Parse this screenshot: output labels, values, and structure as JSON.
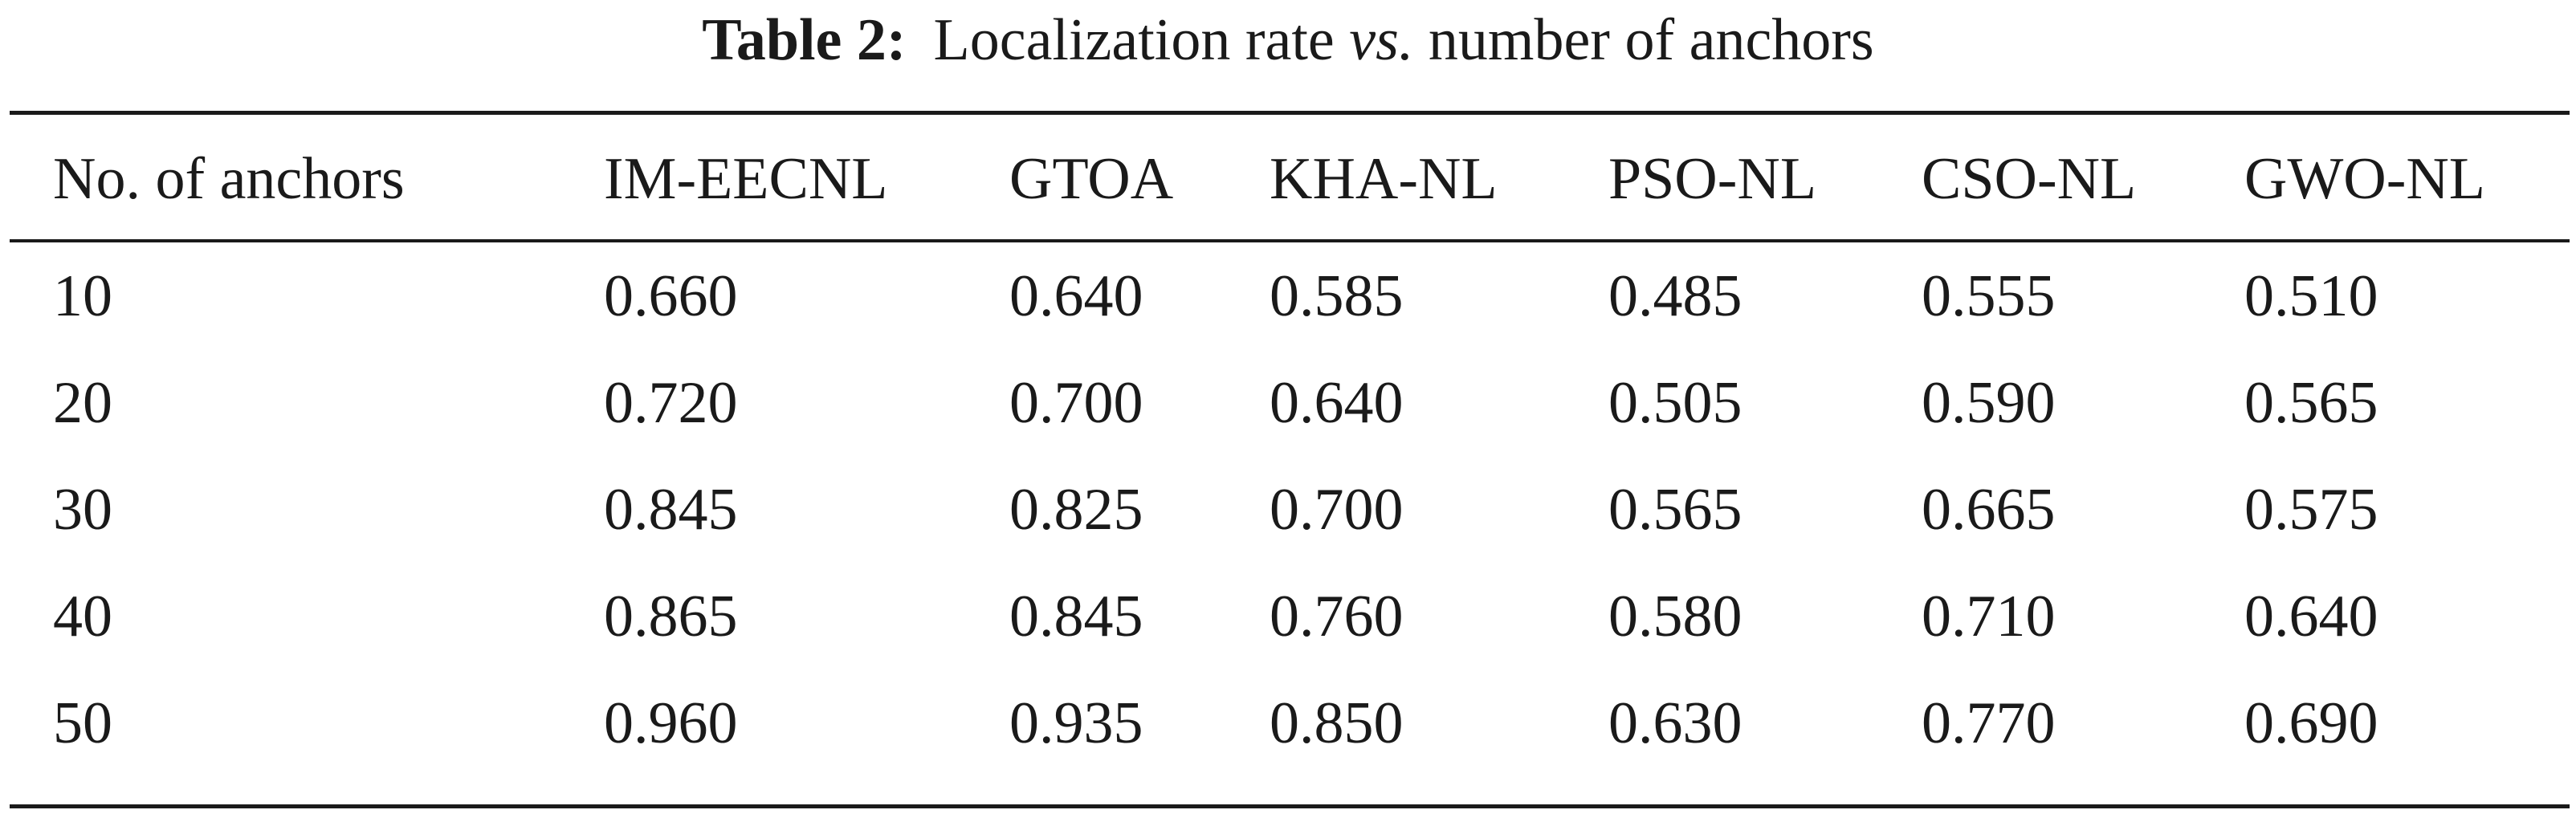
{
  "caption": {
    "label": "Table 2:",
    "text_before": "Localization rate",
    "text_italic": "vs.",
    "text_after": "number of anchors"
  },
  "table": {
    "headers": [
      "No. of anchors",
      "IM-EECNL",
      "GTOA",
      "KHA-NL",
      "PSO-NL",
      "CSO-NL",
      "GWO-NL"
    ],
    "rows": [
      [
        "10",
        "0.660",
        "0.640",
        "0.585",
        "0.485",
        "0.555",
        "0.510"
      ],
      [
        "20",
        "0.720",
        "0.700",
        "0.640",
        "0.505",
        "0.590",
        "0.565"
      ],
      [
        "30",
        "0.845",
        "0.825",
        "0.700",
        "0.565",
        "0.665",
        "0.575"
      ],
      [
        "40",
        "0.865",
        "0.845",
        "0.760",
        "0.580",
        "0.710",
        "0.640"
      ],
      [
        "50",
        "0.960",
        "0.935",
        "0.850",
        "0.630",
        "0.770",
        "0.690"
      ]
    ]
  }
}
